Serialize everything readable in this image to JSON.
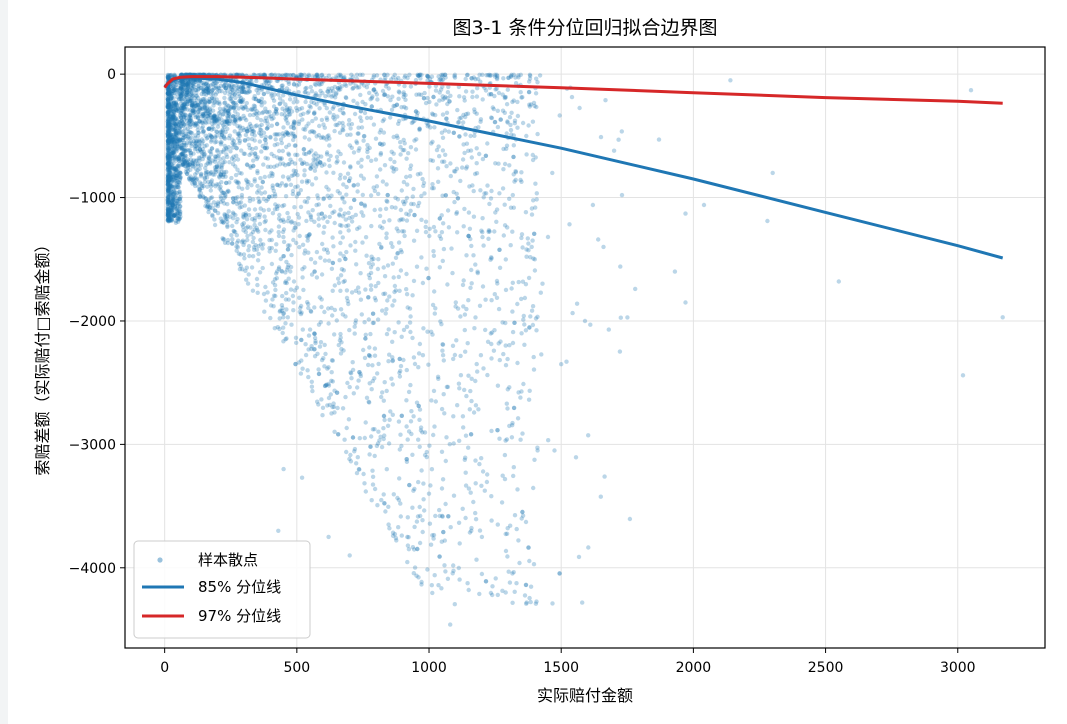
{
  "chart_data": {
    "type": "scatter",
    "title": "图3-1 条件分位回归拟合边界图",
    "xlabel": "实际赔付金额",
    "ylabel": "索赔差额（实际赔付□索赔金额）",
    "xlim": [
      -150,
      3330
    ],
    "ylim": [
      -4650,
      220
    ],
    "xticks": [
      0,
      500,
      1000,
      1500,
      2000,
      2500,
      3000
    ],
    "yticks": [
      0,
      -1000,
      -2000,
      -3000,
      -4000
    ],
    "grid": true,
    "legend_position": "lower-left",
    "series": [
      {
        "name": "样本散点",
        "kind": "scatter",
        "color": "#1f77b4",
        "opacity": 0.3,
        "count": 4500,
        "highlight_points": [
          {
            "x": 3050,
            "y": -130
          },
          {
            "x": 3170,
            "y": -1970
          },
          {
            "x": 3020,
            "y": -2440
          },
          {
            "x": 2550,
            "y": -1680
          },
          {
            "x": 2280,
            "y": -1190
          },
          {
            "x": 2300,
            "y": -800
          },
          {
            "x": 2140,
            "y": -50
          },
          {
            "x": 2040,
            "y": -1060
          },
          {
            "x": 1970,
            "y": -1850
          },
          {
            "x": 1970,
            "y": -1130
          },
          {
            "x": 1930,
            "y": -1600
          },
          {
            "x": 1870,
            "y": -530
          },
          {
            "x": 1780,
            "y": -1740
          },
          {
            "x": 1730,
            "y": -980
          },
          {
            "x": 1700,
            "y": -620
          },
          {
            "x": 1680,
            "y": -2070
          },
          {
            "x": 1660,
            "y": -1400
          },
          {
            "x": 1640,
            "y": -1340
          },
          {
            "x": 1620,
            "y": -1060
          },
          {
            "x": 1610,
            "y": -2030
          },
          {
            "x": 1590,
            "y": -2000
          },
          {
            "x": 1560,
            "y": -1860
          },
          {
            "x": 1520,
            "y": -2330
          },
          {
            "x": 1500,
            "y": -2350
          },
          {
            "x": 1450,
            "y": -1320
          },
          {
            "x": 1400,
            "y": -1500
          },
          {
            "x": 1290,
            "y": -4200
          },
          {
            "x": 1260,
            "y": -4220
          },
          {
            "x": 1240,
            "y": -4150
          },
          {
            "x": 1200,
            "y": -4050
          },
          {
            "x": 1150,
            "y": -4180
          },
          {
            "x": 1080,
            "y": -4460
          },
          {
            "x": 1260,
            "y": -3650
          },
          {
            "x": 1200,
            "y": -3750
          },
          {
            "x": 1160,
            "y": -3700
          },
          {
            "x": 1050,
            "y": -3580
          },
          {
            "x": 1000,
            "y": -3400
          },
          {
            "x": 920,
            "y": -3820
          },
          {
            "x": 850,
            "y": -3680
          },
          {
            "x": 700,
            "y": -3900
          },
          {
            "x": 620,
            "y": -3750
          },
          {
            "x": 520,
            "y": -3270
          },
          {
            "x": 450,
            "y": -3200
          },
          {
            "x": 430,
            "y": -3700
          },
          {
            "x": 1290,
            "y": -2200
          },
          {
            "x": 1350,
            "y": -2100
          },
          {
            "x": 1110,
            "y": -1900
          },
          {
            "x": 1300,
            "y": -30
          },
          {
            "x": 1250,
            "y": -20
          },
          {
            "x": 1420,
            "y": -10
          }
        ]
      },
      {
        "name": "85% 分位线",
        "kind": "line",
        "color": "#1f77b4",
        "points": [
          {
            "x": 0,
            "y": -100
          },
          {
            "x": 20,
            "y": -60
          },
          {
            "x": 50,
            "y": -35
          },
          {
            "x": 100,
            "y": -30
          },
          {
            "x": 200,
            "y": -40
          },
          {
            "x": 300,
            "y": -70
          },
          {
            "x": 400,
            "y": -120
          },
          {
            "x": 500,
            "y": -170
          },
          {
            "x": 700,
            "y": -260
          },
          {
            "x": 1000,
            "y": -380
          },
          {
            "x": 1500,
            "y": -600
          },
          {
            "x": 2000,
            "y": -850
          },
          {
            "x": 2500,
            "y": -1120
          },
          {
            "x": 3000,
            "y": -1390
          },
          {
            "x": 3170,
            "y": -1490
          }
        ]
      },
      {
        "name": "97% 分位线",
        "kind": "line",
        "color": "#d62728",
        "points": [
          {
            "x": 0,
            "y": -110
          },
          {
            "x": 10,
            "y": -80
          },
          {
            "x": 30,
            "y": -40
          },
          {
            "x": 60,
            "y": -25
          },
          {
            "x": 100,
            "y": -20
          },
          {
            "x": 200,
            "y": -20
          },
          {
            "x": 300,
            "y": -25
          },
          {
            "x": 500,
            "y": -40
          },
          {
            "x": 1000,
            "y": -75
          },
          {
            "x": 1500,
            "y": -110
          },
          {
            "x": 2000,
            "y": -150
          },
          {
            "x": 2500,
            "y": -190
          },
          {
            "x": 3000,
            "y": -220
          },
          {
            "x": 3170,
            "y": -235
          }
        ]
      }
    ]
  }
}
